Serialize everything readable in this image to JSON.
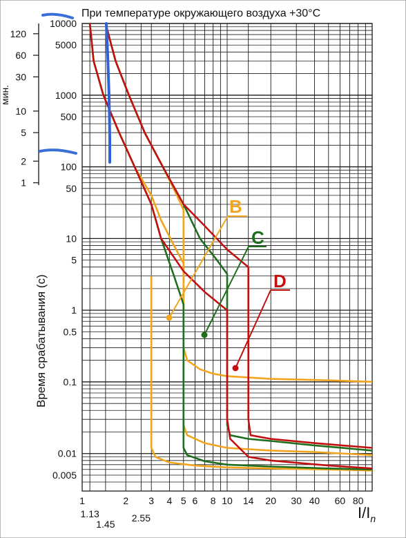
{
  "chart_data": {
    "type": "line",
    "title": "При температуре окружающего воздуха +30°C",
    "ylabel": "Время срабатывания (с)",
    "xlabel": "I/I",
    "xlabel_sub": "n",
    "x_scale": "log",
    "y_scale": "log",
    "xlim": [
      1,
      100
    ],
    "ylim": [
      0.003,
      10000
    ],
    "grid": true,
    "x_ticks_top": [
      "1",
      "2",
      "3",
      "4",
      "5",
      "6",
      "8",
      "10",
      "14",
      "20",
      "30",
      "40",
      "60",
      "80"
    ],
    "x_ticks_bottom": [
      "1.13",
      "1.45",
      "2.55"
    ],
    "y_ticks": [
      "10000",
      "5000",
      "1000",
      "500",
      "100",
      "50",
      "10",
      "5",
      "1",
      "0.5",
      "0.1",
      "0.01",
      "0.005"
    ],
    "minutes_axis": {
      "label": "мин.",
      "ticks": [
        "120",
        "60",
        "30",
        "10",
        "5",
        "2",
        "1"
      ]
    },
    "curve_labels": [
      {
        "name": "B",
        "color": "#f2a51c"
      },
      {
        "name": "C",
        "color": "#1e6e1e"
      },
      {
        "name": "D",
        "color": "#c21010"
      }
    ],
    "series": [
      {
        "name": "B",
        "color": "#f2a51c",
        "bound": "lower",
        "points": [
          [
            1.13,
            10000
          ],
          [
            1.2,
            3000
          ],
          [
            1.4,
            1000
          ],
          [
            1.8,
            300
          ],
          [
            2.3,
            100
          ],
          [
            3,
            40
          ],
          [
            3.5,
            18
          ],
          [
            4.3,
            8
          ],
          [
            5,
            4.5
          ],
          [
            5,
            0.025
          ],
          [
            5.3,
            0.018
          ],
          [
            7,
            0.014
          ],
          [
            10,
            0.012
          ],
          [
            20,
            0.011
          ],
          [
            40,
            0.0105
          ],
          [
            100,
            0.0095
          ]
        ]
      },
      {
        "name": "B",
        "color": "#f2a51c",
        "bound": "upper",
        "points": [
          [
            1.45,
            10000
          ],
          [
            1.7,
            3000
          ],
          [
            2.1,
            1000
          ],
          [
            2.7,
            300
          ],
          [
            3.6,
            100
          ],
          [
            4.5,
            40
          ],
          [
            5,
            25
          ],
          [
            5,
            0.3
          ],
          [
            5.3,
            0.2
          ],
          [
            6.5,
            0.15
          ],
          [
            8,
            0.13
          ],
          [
            10,
            0.12
          ],
          [
            20,
            0.11
          ],
          [
            50,
            0.105
          ],
          [
            100,
            0.1
          ]
        ]
      },
      {
        "name": "B",
        "color": "#f2a51c",
        "bound": "trip",
        "points": [
          [
            3,
            3
          ],
          [
            3,
            0.012
          ],
          [
            3.2,
            0.009
          ],
          [
            4,
            0.0075
          ],
          [
            6,
            0.0068
          ],
          [
            10,
            0.0064
          ],
          [
            20,
            0.0062
          ],
          [
            50,
            0.006
          ],
          [
            100,
            0.0058
          ]
        ]
      },
      {
        "name": "C",
        "color": "#1e6e1e",
        "bound": "lower",
        "points": [
          [
            1.13,
            10000
          ],
          [
            1.2,
            3000
          ],
          [
            1.4,
            1000
          ],
          [
            1.8,
            300
          ],
          [
            2.3,
            100
          ],
          [
            3,
            30
          ],
          [
            3.5,
            10
          ],
          [
            4.3,
            3
          ],
          [
            5,
            1.2
          ],
          [
            5,
            0.012
          ],
          [
            5.3,
            0.0095
          ],
          [
            7,
            0.0078
          ],
          [
            10,
            0.007
          ],
          [
            20,
            0.0066
          ],
          [
            50,
            0.0062
          ],
          [
            100,
            0.006
          ]
        ]
      },
      {
        "name": "C",
        "color": "#1e6e1e",
        "bound": "upper",
        "points": [
          [
            1.45,
            10000
          ],
          [
            1.7,
            3000
          ],
          [
            2.1,
            1000
          ],
          [
            2.7,
            300
          ],
          [
            3.6,
            100
          ],
          [
            5,
            30
          ],
          [
            6.5,
            10
          ],
          [
            8.5,
            5
          ],
          [
            10,
            3.2
          ],
          [
            10,
            0.025
          ],
          [
            10.5,
            0.018
          ],
          [
            14,
            0.016
          ],
          [
            20,
            0.015
          ],
          [
            40,
            0.013
          ],
          [
            100,
            0.011
          ]
        ]
      },
      {
        "name": "D",
        "color": "#c21010",
        "bound": "lower",
        "points": [
          [
            1.13,
            10000
          ],
          [
            1.2,
            3000
          ],
          [
            1.4,
            1000
          ],
          [
            1.8,
            300
          ],
          [
            2.3,
            100
          ],
          [
            3,
            30
          ],
          [
            3.5,
            10
          ],
          [
            5,
            3.5
          ],
          [
            7,
            1.8
          ],
          [
            10,
            1.0
          ],
          [
            10,
            0.03
          ],
          [
            10.5,
            0.016
          ],
          [
            14,
            0.009
          ],
          [
            20,
            0.008
          ],
          [
            50,
            0.0068
          ],
          [
            100,
            0.0062
          ]
        ]
      },
      {
        "name": "D",
        "color": "#c21010",
        "bound": "upper",
        "points": [
          [
            1.45,
            10000
          ],
          [
            1.7,
            3000
          ],
          [
            2.1,
            1000
          ],
          [
            2.7,
            300
          ],
          [
            3.6,
            100
          ],
          [
            5,
            30
          ],
          [
            7,
            15
          ],
          [
            10,
            7
          ],
          [
            14,
            4
          ],
          [
            14,
            0.03
          ],
          [
            14.5,
            0.018
          ],
          [
            20,
            0.016
          ],
          [
            40,
            0.014
          ],
          [
            100,
            0.012
          ]
        ]
      }
    ],
    "annotations": {
      "label_B": "B",
      "label_C": "C",
      "label_D": "D"
    }
  }
}
